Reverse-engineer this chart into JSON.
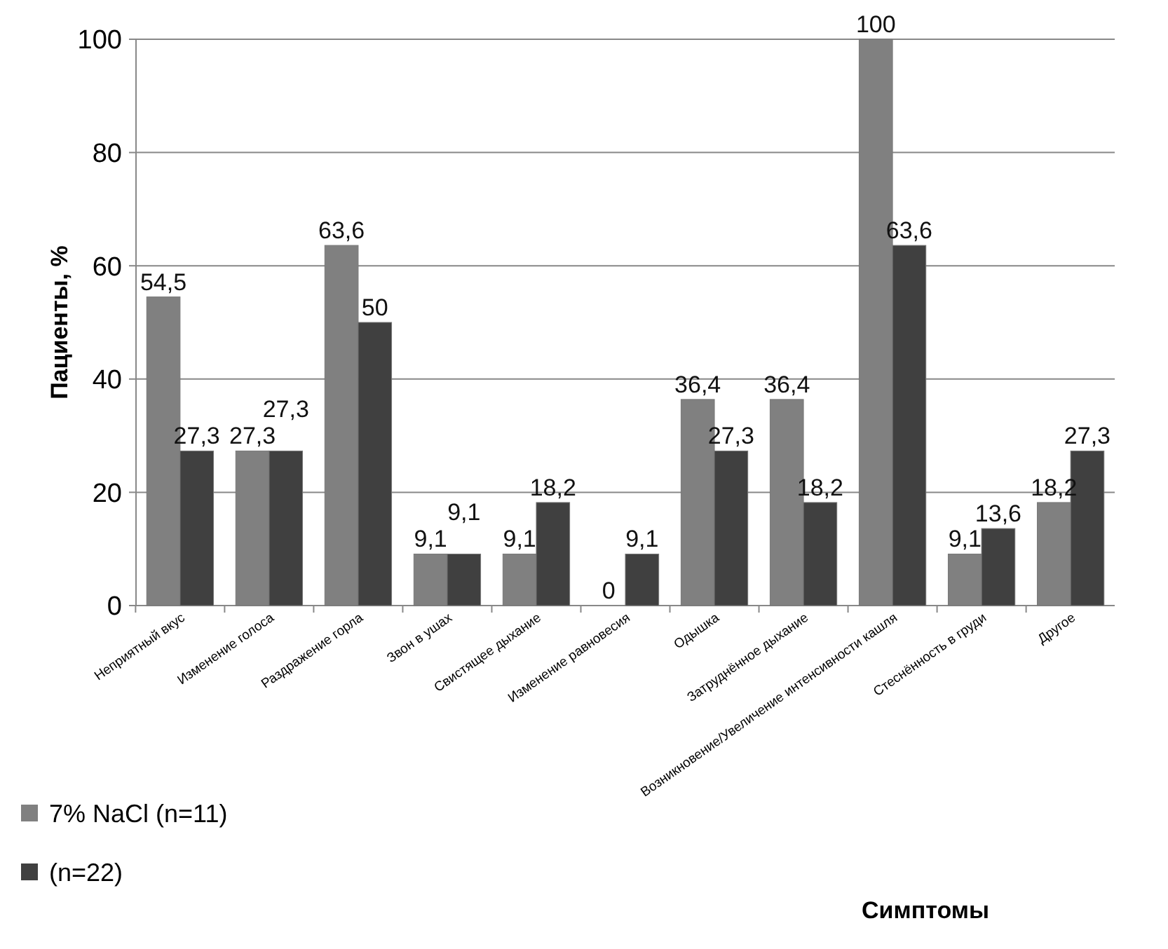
{
  "chart_data": {
    "type": "bar",
    "xlabel": "Симптомы",
    "ylabel": "Пациенты, %",
    "categories": [
      "Неприятный вкус",
      "Изменение голоса",
      "Раздражение горла",
      "Звон в ушах",
      "Свистящее дыхание",
      "Изменение равновесия",
      "Одышка",
      "Затруднённое дыхание",
      "Возникновение/Увеличение интенсивности кашля",
      "Стеснённость в груди",
      "Другое"
    ],
    "series": [
      {
        "name": "7% NaCl (n=11)",
        "color": "#808080",
        "values": [
          54.5,
          27.3,
          63.6,
          9.1,
          9.1,
          0,
          36.4,
          36.4,
          100,
          9.1,
          18.2
        ],
        "value_labels": [
          "54,5",
          "27,3",
          "63,6",
          "9,1",
          "9,1",
          "0",
          "36,4",
          "36,4",
          "100",
          "9,1",
          "18,2"
        ]
      },
      {
        "name": "(n=22)",
        "color": "#404040",
        "values": [
          27.3,
          27.3,
          50,
          9.1,
          18.2,
          9.1,
          27.3,
          18.2,
          63.6,
          13.6,
          27.3
        ],
        "value_labels": [
          "27,3",
          "27,3",
          "50",
          "9,1",
          "18,2",
          "9,1",
          "27,3",
          "18,2",
          "63,6",
          "13,6",
          "27,3"
        ]
      }
    ],
    "ylim": [
      0,
      100
    ],
    "yticks": [
      0,
      20,
      40,
      60,
      80,
      100
    ],
    "grid": "y",
    "legend": "bottom left"
  }
}
